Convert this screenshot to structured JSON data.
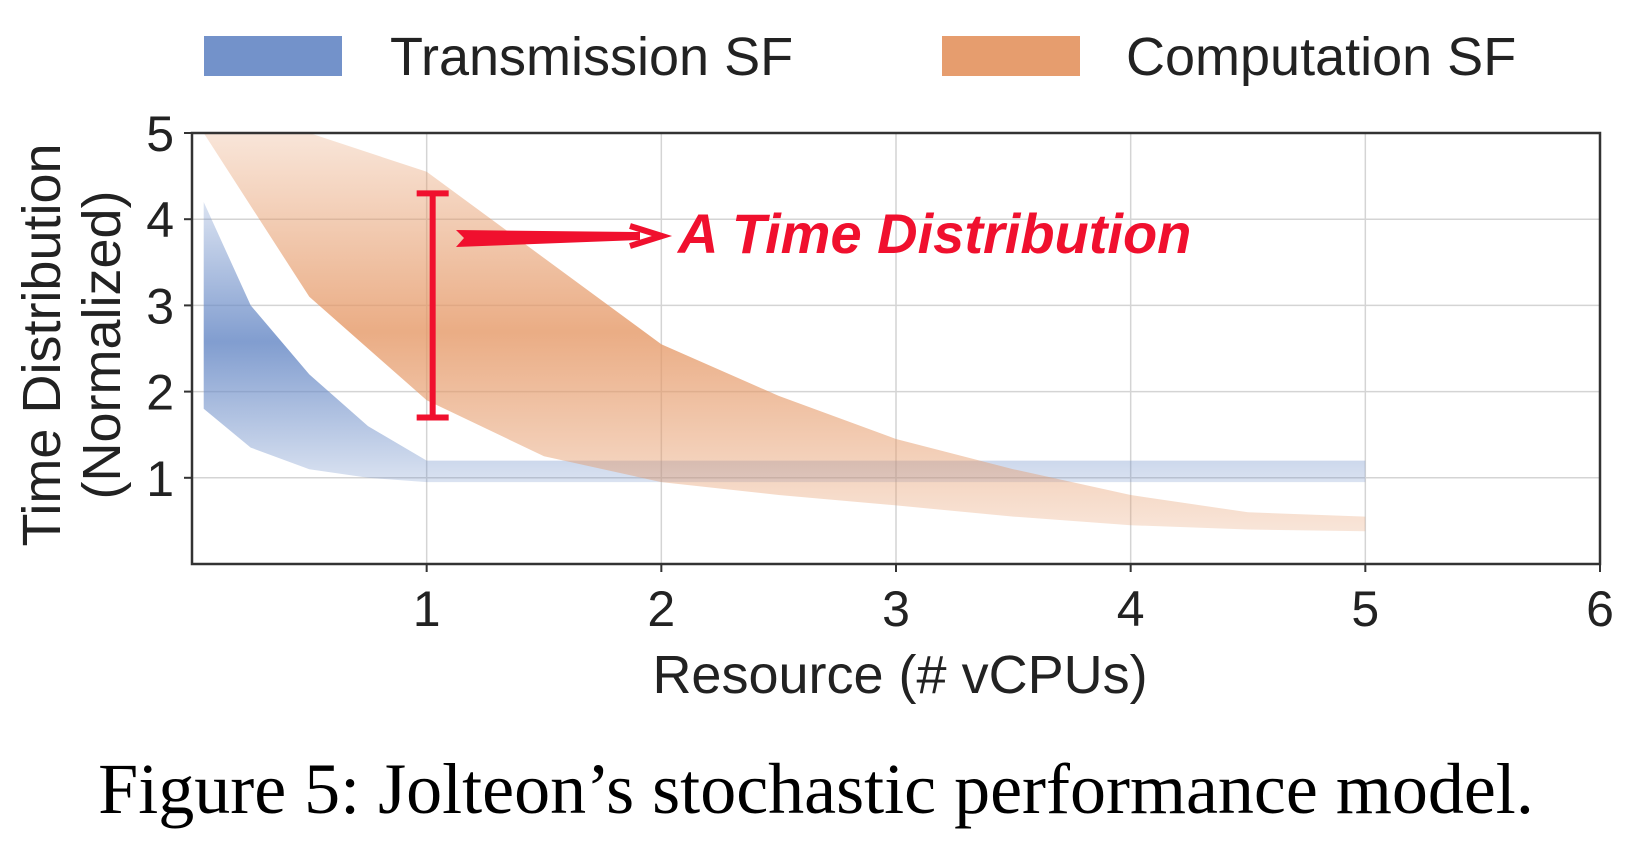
{
  "caption": "Figure 5: Jolteon’s stochastic performance model.",
  "chart_data": {
    "type": "area",
    "xlabel": "Resource (# vCPUs)",
    "ylabel_line1": "Time Distribution",
    "ylabel_line2": "(Normalized)",
    "xlim": [
      0,
      6
    ],
    "ylim": [
      0,
      5
    ],
    "xticks": [
      "1",
      "2",
      "3",
      "4",
      "5",
      "6"
    ],
    "yticks": [
      "1",
      "2",
      "3",
      "4",
      "5"
    ],
    "grid": true,
    "legend_position": "top",
    "series": [
      {
        "name": "Transmission SF",
        "color": "#6b8cc7",
        "x": [
          0.05,
          0.25,
          0.5,
          0.75,
          1.0,
          1.5,
          2,
          3,
          4,
          5
        ],
        "lower": [
          1.8,
          1.35,
          1.1,
          1.0,
          0.95,
          0.95,
          0.95,
          0.95,
          0.95,
          0.95
        ],
        "upper": [
          4.2,
          3.0,
          2.2,
          1.6,
          1.2,
          1.2,
          1.2,
          1.2,
          1.2,
          1.2
        ]
      },
      {
        "name": "Computation SF",
        "color": "#e59866",
        "x": [
          0.05,
          0.5,
          1.0,
          1.5,
          2.0,
          2.5,
          3.0,
          3.5,
          4.0,
          4.5,
          5.0
        ],
        "lower": [
          5.0,
          3.1,
          1.9,
          1.25,
          0.95,
          0.8,
          0.68,
          0.55,
          0.45,
          0.4,
          0.38
        ],
        "upper": [
          5.0,
          5.0,
          4.55,
          3.55,
          2.55,
          1.95,
          1.45,
          1.1,
          0.8,
          0.6,
          0.55
        ]
      }
    ],
    "annotation": {
      "text": "A Time Distribution",
      "color": "#f0102e",
      "x": 1.0,
      "range": [
        1.7,
        4.3
      ]
    }
  }
}
